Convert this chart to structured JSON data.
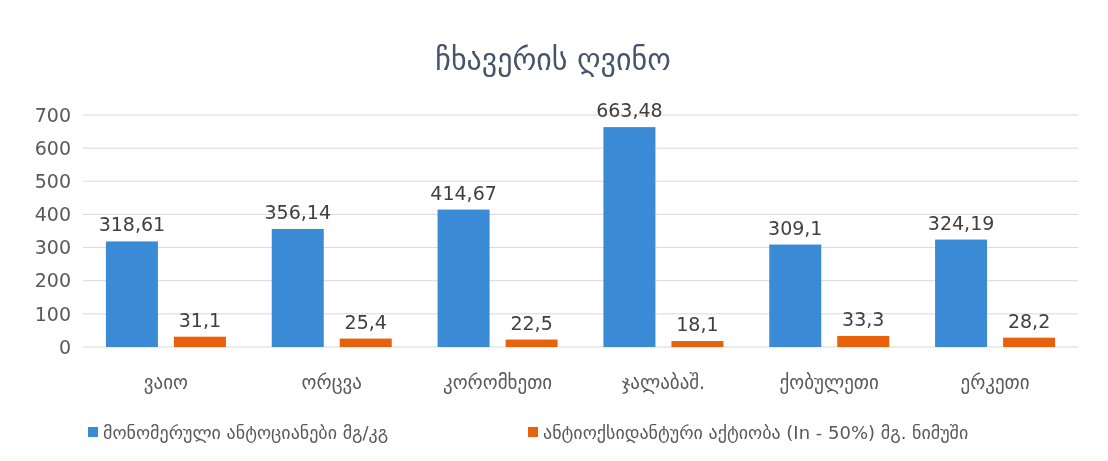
{
  "chart_data": {
    "type": "bar",
    "title": "ჩხავერის ღვინო",
    "categories": [
      "ვაიო",
      "ორცვა",
      "კორომხეთი",
      "ჯალაბაშ.",
      "ქობულეთი",
      "ერკეთი"
    ],
    "series": [
      {
        "name": "მონომერული ანტოციანები  მგ/კგ",
        "color": "#3b8ad6",
        "values": [
          318.61,
          356.14,
          414.67,
          663.48,
          309.1,
          324.19
        ],
        "value_labels": [
          "318,61",
          "356,14",
          "414,67",
          "663,48",
          "309,1",
          "324,19"
        ]
      },
      {
        "name": "ანტიოქსიდანტური აქტიობა (In - 50%) მგ. ნიმუში",
        "color": "#e8620e",
        "values": [
          31.1,
          25.4,
          22.5,
          18.1,
          33.3,
          28.2
        ],
        "value_labels": [
          "31,1",
          "25,4",
          "22,5",
          "18,1",
          "33,3",
          "28,2"
        ]
      }
    ],
    "ylim": [
      0,
      700
    ],
    "yticks": [
      0,
      100,
      200,
      300,
      400,
      500,
      600,
      700
    ],
    "grid": "y",
    "legend": "bottom"
  }
}
